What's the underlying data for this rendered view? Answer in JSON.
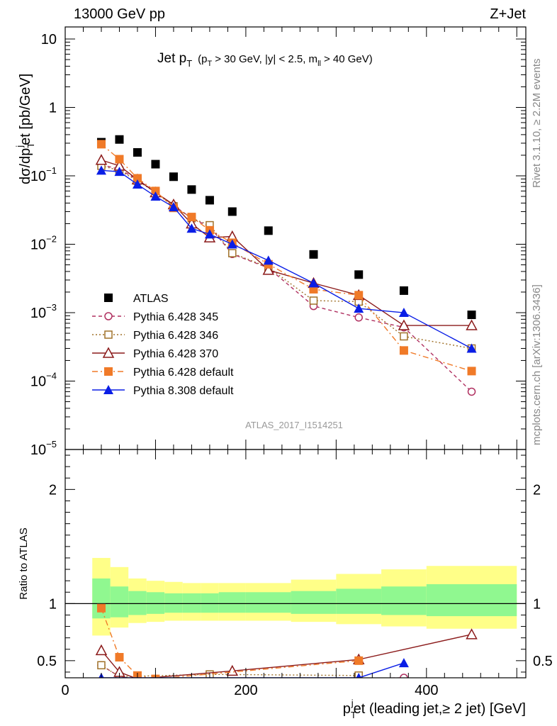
{
  "header": {
    "left": "13000 GeV pp",
    "right": "Z+Jet"
  },
  "side": {
    "rivet": "Rivet 3.1.10, ≥ 2.2M events",
    "mcplots": "mcplots.cern.ch [arXiv:1306.3436]"
  },
  "analysis_id": "ATLAS_2017_I1514251",
  "chart_data": [
    {
      "type": "scatter",
      "panel": "main",
      "title": "Jet p_T (p_T > 30 GeV, |y| < 2.5, m_ll > 40 GeV)",
      "title_parts": {
        "main": "Jet p",
        "main_sub": "T",
        "cond_1": "(p",
        "cond_1_sub": "T",
        "cond_2": "> 30 GeV, |y| < 2.5, m",
        "cond_2_sub": "ll",
        "cond_3": "> 40 GeV)"
      },
      "ylabel": "dσ/dp_T^j et [pb/GeV]",
      "ylabel_parts": {
        "a": "dσ/dp",
        "sub": "T",
        "sup": "j",
        "b": "et [pb/GeV]"
      },
      "yscale": "log",
      "ylim": [
        1e-05,
        15
      ],
      "y_ticks": [
        {
          "value": 10,
          "mant": "10",
          "exp": ""
        },
        {
          "value": 1,
          "mant": "1",
          "exp": ""
        },
        {
          "value": 0.1,
          "mant": "10",
          "exp": "−1"
        },
        {
          "value": 0.01,
          "mant": "10",
          "exp": "−2"
        },
        {
          "value": 0.001,
          "mant": "10",
          "exp": "−3"
        },
        {
          "value": 0.0001,
          "mant": "10",
          "exp": "−4"
        },
        {
          "value": 1e-05,
          "mant": "10",
          "exp": "−5"
        }
      ],
      "xlim": [
        0,
        510
      ],
      "legend_position": "bottom-left",
      "series": [
        {
          "name": "ATLAS",
          "color": "#000000",
          "marker": "square-filled",
          "line": "none",
          "x": [
            40,
            60,
            80,
            100,
            120,
            140,
            160,
            185,
            225,
            275,
            325,
            375,
            450
          ],
          "y": [
            0.31,
            0.34,
            0.22,
            0.148,
            0.097,
            0.063,
            0.044,
            0.03,
            0.0158,
            0.0071,
            0.0036,
            0.0021,
            0.00093
          ]
        },
        {
          "name": "Pythia 6.428 345",
          "color": "#b03060",
          "marker": "circle-open",
          "line": "dashed",
          "x": [
            40,
            60,
            80,
            100,
            120,
            140,
            160,
            185,
            225,
            275,
            325,
            375,
            450
          ],
          "y": [
            0.145,
            0.125,
            0.088,
            0.058,
            0.037,
            0.024,
            0.018,
            0.0072,
            0.0045,
            0.00125,
            0.00085,
            0.00061,
            7e-05
          ]
        },
        {
          "name": "Pythia 6.428 346",
          "color": "#a0722a",
          "marker": "square-open",
          "line": "dotted",
          "x": [
            40,
            60,
            80,
            100,
            120,
            140,
            160,
            185,
            225,
            275,
            325,
            375,
            450
          ],
          "y": [
            0.14,
            0.12,
            0.085,
            0.057,
            0.036,
            0.024,
            0.019,
            0.0074,
            0.0046,
            0.0015,
            0.00145,
            0.00045,
            0.0003
          ]
        },
        {
          "name": "Pythia 6.428 370",
          "color": "#8b1a1a",
          "marker": "triangle-open",
          "line": "solid",
          "x": [
            40,
            60,
            80,
            100,
            120,
            140,
            160,
            185,
            225,
            275,
            325,
            375,
            450
          ],
          "y": [
            0.17,
            0.14,
            0.088,
            0.057,
            0.038,
            0.02,
            0.0125,
            0.013,
            0.0042,
            0.0027,
            0.0018,
            0.00065,
            0.00065
          ]
        },
        {
          "name": "Pythia 6.428 default",
          "color": "#f07a28",
          "marker": "square-filled",
          "line": "dashdot",
          "x": [
            40,
            60,
            80,
            100,
            120,
            140,
            160,
            185,
            225,
            275,
            325,
            375,
            450
          ],
          "y": [
            0.29,
            0.175,
            0.092,
            0.06,
            0.034,
            0.025,
            0.016,
            0.0105,
            0.0051,
            0.0022,
            0.0018,
            0.00028,
            0.00014
          ]
        },
        {
          "name": "Pythia 8.308 default",
          "color": "#0a1ee6",
          "marker": "triangle-filled",
          "line": "solid",
          "x": [
            40,
            60,
            80,
            100,
            120,
            140,
            160,
            185,
            225,
            275,
            325,
            375,
            450
          ],
          "y": [
            0.12,
            0.115,
            0.075,
            0.05,
            0.035,
            0.017,
            0.014,
            0.01,
            0.0058,
            0.0027,
            0.00115,
            0.001,
            0.0003
          ]
        }
      ]
    },
    {
      "type": "scatter",
      "panel": "ratio",
      "ylabel": "Ratio to ATLAS",
      "xlabel": "p_T^j et (leading jet,≥ 2 jet) [GeV]",
      "xlabel_parts": {
        "a": "p",
        "sub": "T",
        "sup": "j",
        "b": "et (leading jet,≥ 2 jet) [GeV]"
      },
      "xlim": [
        0,
        510
      ],
      "ylim": [
        0.35,
        2.35
      ],
      "x_ticks": [
        {
          "value": 0,
          "label": "0"
        },
        {
          "value": 200,
          "label": "200"
        },
        {
          "value": 400,
          "label": "400"
        }
      ],
      "y_ticks": [
        {
          "value": 0.5,
          "label": "0.5"
        },
        {
          "value": 1,
          "label": "1"
        },
        {
          "value": 2,
          "label": "2"
        }
      ],
      "bands": {
        "x_edges": [
          30,
          50,
          70,
          90,
          110,
          130,
          150,
          170,
          200,
          250,
          300,
          350,
          400,
          500
        ],
        "outer_low": [
          0.72,
          0.79,
          0.83,
          0.84,
          0.85,
          0.85,
          0.85,
          0.85,
          0.85,
          0.84,
          0.82,
          0.8,
          0.78
        ],
        "outer_high": [
          1.4,
          1.32,
          1.22,
          1.2,
          1.19,
          1.18,
          1.18,
          1.18,
          1.18,
          1.21,
          1.26,
          1.3,
          1.33
        ],
        "inner_low": [
          0.87,
          0.88,
          0.9,
          0.91,
          0.92,
          0.92,
          0.92,
          0.92,
          0.92,
          0.91,
          0.91,
          0.9,
          0.89
        ],
        "inner_high": [
          1.22,
          1.15,
          1.11,
          1.1,
          1.09,
          1.09,
          1.09,
          1.1,
          1.1,
          1.11,
          1.13,
          1.15,
          1.17
        ],
        "outer_color": "#ffff88",
        "inner_color": "#90f890"
      },
      "series": [
        {
          "name": "Pythia 6.428 345",
          "color": "#b03060",
          "marker": "circle-open",
          "line": "dashed",
          "x": [
            40,
            60,
            80,
            100,
            375
          ],
          "y": [
            0.46,
            0.36,
            0.34,
            0.33,
            0.35
          ]
        },
        {
          "name": "Pythia 6.428 346",
          "color": "#a0722a",
          "marker": "square-open",
          "line": "dotted",
          "x": [
            40,
            60,
            160,
            325
          ],
          "y": [
            0.46,
            0.36,
            0.38,
            0.37
          ]
        },
        {
          "name": "Pythia 6.428 370",
          "color": "#8b1a1a",
          "marker": "triangle-open",
          "line": "solid",
          "x": [
            40,
            60,
            80,
            185,
            325,
            450
          ],
          "y": [
            0.59,
            0.4,
            0.34,
            0.41,
            0.51,
            0.73
          ]
        },
        {
          "name": "Pythia 6.428 default",
          "color": "#f07a28",
          "marker": "square-filled",
          "line": "dashdot",
          "x": [
            40,
            60,
            80,
            100,
            325
          ],
          "y": [
            0.96,
            0.53,
            0.37,
            0.34,
            0.5
          ]
        },
        {
          "name": "Pythia 8.308 default",
          "color": "#0a1ee6",
          "marker": "triangle-filled",
          "line": "solid",
          "x": [
            40,
            325,
            375
          ],
          "y": [
            0.35,
            0.35,
            0.48
          ]
        }
      ]
    }
  ]
}
